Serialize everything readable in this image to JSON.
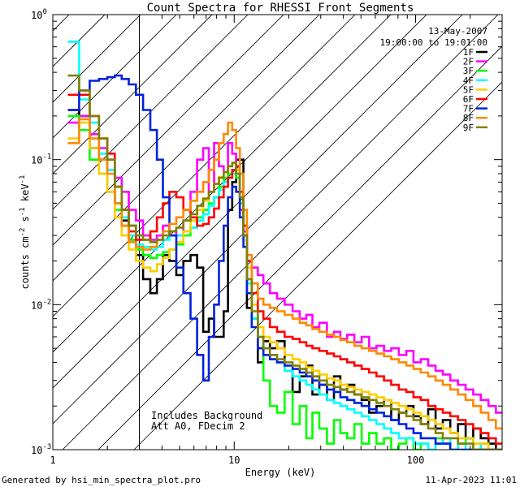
{
  "chart_data": {
    "type": "line",
    "title": "Count Spectra for RHESSI Front Segments",
    "xlabel": "Energy (keV)",
    "ylabel_parts": [
      "counts cm",
      "-2",
      " s",
      "-1",
      " keV",
      "-1"
    ],
    "x_scale": "log",
    "y_scale": "log",
    "xlim": [
      1,
      300
    ],
    "ylim": [
      0.001,
      1.0
    ],
    "x_ticks": [
      {
        "value": 1,
        "label": "1"
      },
      {
        "value": 10,
        "label": "10"
      },
      {
        "value": 100,
        "label": "100"
      }
    ],
    "y_ticks": [
      {
        "value": 0.001,
        "base": "10",
        "exp": "-3"
      },
      {
        "value": 0.01,
        "base": "10",
        "exp": "-2"
      },
      {
        "value": 0.1,
        "base": "10",
        "exp": "-1"
      },
      {
        "value": 1,
        "base": "10",
        "exp": "0"
      }
    ],
    "hatched_region": {
      "x_from": 1,
      "x_to": 3.0
    },
    "date": "13-May-2007",
    "time_range": "19:00:00 to 19:01:00",
    "annotations": [
      "Includes Background",
      "Att A0, FDecim 2"
    ],
    "x": [
      1.3,
      1.5,
      1.7,
      1.9,
      2.1,
      2.3,
      2.5,
      2.75,
      3.0,
      3.3,
      3.6,
      3.9,
      4.2,
      4.6,
      5.0,
      5.5,
      6.0,
      6.5,
      7.0,
      7.5,
      8.0,
      8.5,
      9.0,
      9.5,
      10.0,
      10.5,
      11.0,
      11.5,
      12.0,
      13.0,
      14.0,
      15.0,
      16.5,
      18.0,
      20.0,
      22.0,
      24.0,
      26.0,
      28.0,
      31.0,
      34.0,
      37.0,
      40.0,
      44.0,
      48.0,
      53.0,
      58.0,
      64.0,
      70.0,
      77.0,
      85.0,
      93.0,
      102.0,
      112.0,
      123.0,
      135.0,
      148.0,
      163.0,
      180.0,
      198.0,
      218.0,
      240.0,
      265.0,
      290.0
    ],
    "series": [
      {
        "name": "1F",
        "color": "#000000",
        "values": [
          0.22,
          0.2,
          0.12,
          0.1,
          0.085,
          0.05,
          0.038,
          0.035,
          0.022,
          0.015,
          0.012,
          0.015,
          0.022,
          0.02,
          0.016,
          0.02,
          0.022,
          0.018,
          0.0065,
          0.008,
          0.006,
          0.006,
          0.009,
          0.045,
          0.07,
          0.1,
          0.1,
          0.035,
          0.0095,
          0.008,
          0.004,
          0.0056,
          0.005,
          0.0056,
          0.0035,
          0.0025,
          0.0032,
          0.0038,
          0.0024,
          0.0028,
          0.0022,
          0.0032,
          0.0026,
          0.0028,
          0.0024,
          0.0022,
          0.0018,
          0.002,
          0.0022,
          0.0016,
          0.0018,
          0.002,
          0.0017,
          0.0015,
          0.0019,
          0.0014,
          0.0016,
          0.0013,
          0.0015,
          0.0012,
          0.0014,
          0.0012,
          0.0011,
          0.001
        ]
      },
      {
        "name": "2F",
        "color": "#ff00ff",
        "values": [
          0.18,
          0.2,
          0.15,
          0.12,
          0.1,
          0.075,
          0.06,
          0.045,
          0.038,
          0.03,
          0.028,
          0.03,
          0.035,
          0.032,
          0.03,
          0.038,
          0.06,
          0.1,
          0.12,
          0.06,
          0.13,
          0.09,
          0.07,
          0.13,
          0.11,
          0.075,
          0.045,
          0.032,
          0.02,
          0.018,
          0.016,
          0.014,
          0.012,
          0.011,
          0.01,
          0.009,
          0.008,
          0.0085,
          0.007,
          0.0075,
          0.006,
          0.0065,
          0.0058,
          0.0062,
          0.0055,
          0.006,
          0.005,
          0.0052,
          0.0048,
          0.005,
          0.0045,
          0.0048,
          0.004,
          0.0042,
          0.0038,
          0.0035,
          0.0033,
          0.003,
          0.0028,
          0.0026,
          0.0024,
          0.0022,
          0.002,
          0.0018
        ]
      },
      {
        "name": "3F",
        "color": "#00ff00",
        "values": [
          0.2,
          0.16,
          0.1,
          0.08,
          0.06,
          0.045,
          0.035,
          0.028,
          0.024,
          0.022,
          0.021,
          0.022,
          0.023,
          0.024,
          0.026,
          0.03,
          0.034,
          0.04,
          0.045,
          0.05,
          0.055,
          0.065,
          0.075,
          0.08,
          0.085,
          0.075,
          0.05,
          0.03,
          0.015,
          0.008,
          0.005,
          0.003,
          0.002,
          0.0018,
          0.0025,
          0.0015,
          0.002,
          0.0012,
          0.0018,
          0.0014,
          0.0011,
          0.0016,
          0.0013,
          0.0012,
          0.0015,
          0.0011,
          0.0013,
          0.0011,
          0.0012,
          0.001,
          0.0011,
          0.0012,
          0.001,
          0.0011,
          0.001,
          0.0012,
          0.0011,
          0.001,
          0.0011,
          0.0012,
          0.001,
          0.0011,
          0.001,
          0.001
        ]
      },
      {
        "name": "4F",
        "color": "#00ffff",
        "values": [
          0.65,
          0.26,
          0.18,
          0.11,
          0.085,
          0.05,
          0.04,
          0.03,
          0.026,
          0.025,
          0.024,
          0.025,
          0.028,
          0.03,
          0.03,
          0.032,
          0.034,
          0.038,
          0.042,
          0.048,
          0.055,
          0.062,
          0.07,
          0.075,
          0.08,
          0.08,
          0.055,
          0.03,
          0.014,
          0.008,
          0.006,
          0.005,
          0.0045,
          0.004,
          0.0035,
          0.0032,
          0.003,
          0.0028,
          0.0026,
          0.0024,
          0.0022,
          0.0021,
          0.002,
          0.0019,
          0.0018,
          0.0017,
          0.0016,
          0.0015,
          0.0014,
          0.0013,
          0.0012,
          0.0012,
          0.0011,
          0.0011,
          0.001,
          0.0011,
          0.0012,
          0.001,
          0.0011,
          0.001,
          0.0011,
          0.001,
          0.001,
          0.001
        ]
      },
      {
        "name": "5F",
        "color": "#ffcc00",
        "values": [
          0.14,
          0.18,
          0.12,
          0.08,
          0.06,
          0.04,
          0.03,
          0.024,
          0.02,
          0.018,
          0.017,
          0.019,
          0.021,
          0.024,
          0.027,
          0.032,
          0.038,
          0.045,
          0.052,
          0.06,
          0.068,
          0.076,
          0.082,
          0.09,
          0.095,
          0.085,
          0.06,
          0.035,
          0.018,
          0.01,
          0.007,
          0.006,
          0.0055,
          0.005,
          0.0045,
          0.0042,
          0.004,
          0.0037,
          0.0035,
          0.0033,
          0.0031,
          0.003,
          0.0028,
          0.0027,
          0.0026,
          0.0025,
          0.0024,
          0.0023,
          0.0022,
          0.0021,
          0.002,
          0.0019,
          0.0018,
          0.0017,
          0.0016,
          0.0015,
          0.0014,
          0.0013,
          0.0012,
          0.0012,
          0.0011,
          0.0011,
          0.001,
          0.001
        ]
      },
      {
        "name": "6F",
        "color": "#ff0000",
        "values": [
          0.28,
          0.28,
          0.2,
          0.14,
          0.11,
          0.065,
          0.045,
          0.032,
          0.028,
          0.028,
          0.032,
          0.04,
          0.05,
          0.06,
          0.055,
          0.045,
          0.04,
          0.035,
          0.036,
          0.04,
          0.046,
          0.055,
          0.065,
          0.075,
          0.085,
          0.09,
          0.06,
          0.035,
          0.02,
          0.012,
          0.009,
          0.008,
          0.007,
          0.0065,
          0.006,
          0.0058,
          0.0055,
          0.0052,
          0.005,
          0.0048,
          0.0046,
          0.0044,
          0.0042,
          0.004,
          0.0038,
          0.0036,
          0.0034,
          0.0032,
          0.003,
          0.0028,
          0.0026,
          0.0025,
          0.0023,
          0.0022,
          0.002,
          0.0019,
          0.0018,
          0.0017,
          0.0016,
          0.0015,
          0.0014,
          0.0013,
          0.0012,
          0.0011
        ]
      },
      {
        "name": "7F",
        "color": "#0022dd",
        "values": [
          0.22,
          0.3,
          0.35,
          0.36,
          0.37,
          0.38,
          0.36,
          0.33,
          0.28,
          0.22,
          0.16,
          0.1,
          0.055,
          0.03,
          0.018,
          0.012,
          0.008,
          0.0045,
          0.003,
          0.006,
          0.01,
          0.02,
          0.035,
          0.055,
          0.065,
          0.06,
          0.04,
          0.025,
          0.012,
          0.007,
          0.005,
          0.0045,
          0.0042,
          0.004,
          0.0038,
          0.0036,
          0.0034,
          0.0032,
          0.003,
          0.0028,
          0.0026,
          0.0025,
          0.0023,
          0.0022,
          0.0021,
          0.002,
          0.0019,
          0.0018,
          0.0017,
          0.0016,
          0.0015,
          0.0014,
          0.0013,
          0.0012,
          0.0012,
          0.0011,
          0.0011,
          0.001,
          0.001,
          0.001,
          0.001,
          0.001,
          0.001,
          0.001
        ]
      },
      {
        "name": "8F",
        "color": "#ff8800",
        "values": [
          0.13,
          0.19,
          0.14,
          0.1,
          0.08,
          0.05,
          0.035,
          0.027,
          0.025,
          0.024,
          0.025,
          0.028,
          0.032,
          0.036,
          0.04,
          0.045,
          0.052,
          0.06,
          0.07,
          0.085,
          0.1,
          0.13,
          0.15,
          0.18,
          0.16,
          0.12,
          0.08,
          0.045,
          0.022,
          0.014,
          0.011,
          0.01,
          0.0095,
          0.009,
          0.0085,
          0.008,
          0.0075,
          0.0072,
          0.0068,
          0.0065,
          0.0062,
          0.006,
          0.0057,
          0.0055,
          0.0052,
          0.005,
          0.0048,
          0.0046,
          0.0044,
          0.0042,
          0.004,
          0.0038,
          0.0036,
          0.0034,
          0.0032,
          0.003,
          0.0028,
          0.0026,
          0.0024,
          0.0022,
          0.002,
          0.0018,
          0.0016,
          0.0014
        ]
      },
      {
        "name": "9F",
        "color": "#808000",
        "values": [
          0.38,
          0.3,
          0.2,
          0.14,
          0.1,
          0.065,
          0.045,
          0.035,
          0.03,
          0.028,
          0.027,
          0.028,
          0.03,
          0.032,
          0.034,
          0.038,
          0.042,
          0.048,
          0.054,
          0.06,
          0.068,
          0.075,
          0.082,
          0.09,
          0.095,
          0.08,
          0.055,
          0.03,
          0.015,
          0.009,
          0.006,
          0.005,
          0.0045,
          0.0042,
          0.004,
          0.0038,
          0.0036,
          0.0034,
          0.0032,
          0.003,
          0.0028,
          0.0027,
          0.0026,
          0.0025,
          0.0024,
          0.0023,
          0.0022,
          0.0021,
          0.002,
          0.0019,
          0.0018,
          0.0017,
          0.0016,
          0.0015,
          0.0014,
          0.0013,
          0.0012,
          0.0012,
          0.0011,
          0.0011,
          0.001,
          0.001,
          0.001,
          0.001
        ]
      }
    ]
  },
  "footer": {
    "generated_by": "Generated by hsi_min_spectra_plot.pro",
    "timestamp": "11-Apr-2023 11:01"
  }
}
